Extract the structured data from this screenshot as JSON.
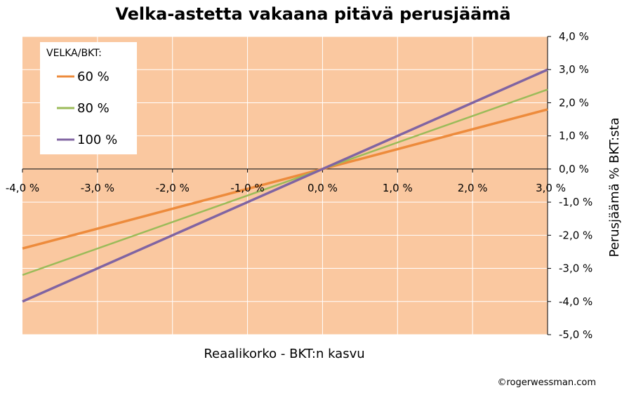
{
  "chart_data": {
    "type": "line",
    "title": "Velka-astetta vakaana pitävä perusjäämä",
    "xlabel": "Reaalikorko - BKT:n kasvu",
    "ylabel": "Perusjäämä % BKT:sta",
    "xlim": [
      -4,
      3
    ],
    "ylim": [
      -5,
      4
    ],
    "x_ticks": [
      "-4,0 %",
      "-3,0 %",
      "-2,0 %",
      "-1,0 %",
      "0,0 %",
      "1,0 %",
      "2,0 %",
      "3,0 %"
    ],
    "y_ticks": [
      "4,0 %",
      "3,0 %",
      "2,0 %",
      "1,0 %",
      "0,0 %",
      "-1,0 %",
      "-2,0 %",
      "-3,0 %",
      "-4,0 %",
      "-5,0 %"
    ],
    "grid": true,
    "legend": {
      "title": "VELKA/BKT:",
      "placement": "top-left"
    },
    "series": [
      {
        "name": "60 %",
        "color": "#ED8B3C",
        "x": [
          -4,
          3
        ],
        "y": [
          -2.4,
          1.8
        ]
      },
      {
        "name": "80 %",
        "color": "#9BBB59",
        "x": [
          -4,
          3
        ],
        "y": [
          -3.2,
          2.4
        ]
      },
      {
        "name": "100 %",
        "color": "#8064A2",
        "x": [
          -4,
          3
        ],
        "y": [
          -4.0,
          3.0
        ]
      }
    ],
    "plot_background": "#FAC8A0",
    "credit": "©rogerwessman.com"
  }
}
